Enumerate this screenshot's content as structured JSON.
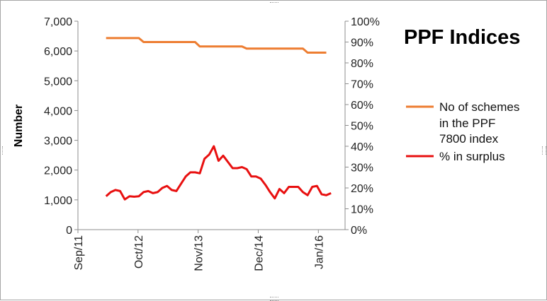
{
  "chart_data": {
    "type": "line",
    "title": "PPF Indices",
    "ylabel": "Number",
    "y_left_ticks": [
      "0",
      "1,000",
      "2,000",
      "3,000",
      "4,000",
      "5,000",
      "6,000",
      "7,000"
    ],
    "y_right_ticks": [
      "0%",
      "10%",
      "20%",
      "30%",
      "40%",
      "50%",
      "60%",
      "70%",
      "80%",
      "90%",
      "100%"
    ],
    "x_ticks": [
      "Sep/11",
      "Oct/12",
      "Nov/13",
      "Dec/14",
      "Jan/16"
    ],
    "ylim_left": [
      0,
      7000
    ],
    "ylim_right": [
      0,
      1
    ],
    "grid": false,
    "legend_position": "right",
    "series": [
      {
        "name_lines": [
          "No of schemes",
          "in the PPF",
          "7800 index"
        ],
        "axis": "left",
        "color": "#ED7D31",
        "points": [
          [
            "2012-03",
            6432
          ],
          [
            "2012-10",
            6432
          ],
          [
            "2012-11",
            6300
          ],
          [
            "2013-10",
            6300
          ],
          [
            "2013-11",
            6150
          ],
          [
            "2014-08",
            6150
          ],
          [
            "2014-09",
            6080
          ],
          [
            "2015-09",
            6080
          ],
          [
            "2015-10",
            5945
          ],
          [
            "2016-02",
            5945
          ]
        ]
      },
      {
        "name_lines": [
          "% in surplus"
        ],
        "axis": "right",
        "color": "#E81010",
        "points": [
          [
            "2012-03",
            0.16
          ],
          [
            "2012-04",
            0.18
          ],
          [
            "2012-05",
            0.19
          ],
          [
            "2012-06",
            0.185
          ],
          [
            "2012-07",
            0.145
          ],
          [
            "2012-08",
            0.16
          ],
          [
            "2012-09",
            0.158
          ],
          [
            "2012-10",
            0.16
          ],
          [
            "2012-11",
            0.18
          ],
          [
            "2012-12",
            0.185
          ],
          [
            "2013-01",
            0.175
          ],
          [
            "2013-02",
            0.18
          ],
          [
            "2013-03",
            0.2
          ],
          [
            "2013-04",
            0.21
          ],
          [
            "2013-05",
            0.19
          ],
          [
            "2013-06",
            0.185
          ],
          [
            "2013-07",
            0.22
          ],
          [
            "2013-08",
            0.255
          ],
          [
            "2013-09",
            0.275
          ],
          [
            "2013-10",
            0.275
          ],
          [
            "2013-11",
            0.27
          ],
          [
            "2013-12",
            0.34
          ],
          [
            "2014-01",
            0.36
          ],
          [
            "2014-02",
            0.4
          ],
          [
            "2014-03",
            0.33
          ],
          [
            "2014-04",
            0.355
          ],
          [
            "2014-05",
            0.325
          ],
          [
            "2014-06",
            0.295
          ],
          [
            "2014-07",
            0.295
          ],
          [
            "2014-08",
            0.3
          ],
          [
            "2014-09",
            0.29
          ],
          [
            "2014-10",
            0.255
          ],
          [
            "2014-11",
            0.255
          ],
          [
            "2014-12",
            0.245
          ],
          [
            "2015-01",
            0.215
          ],
          [
            "2015-02",
            0.18
          ],
          [
            "2015-03",
            0.15
          ],
          [
            "2015-04",
            0.195
          ],
          [
            "2015-05",
            0.175
          ],
          [
            "2015-06",
            0.205
          ],
          [
            "2015-07",
            0.205
          ],
          [
            "2015-08",
            0.205
          ],
          [
            "2015-09",
            0.18
          ],
          [
            "2015-10",
            0.165
          ],
          [
            "2015-11",
            0.205
          ],
          [
            "2015-12",
            0.21
          ],
          [
            "2016-01",
            0.17
          ],
          [
            "2016-02",
            0.165
          ],
          [
            "2016-03",
            0.175
          ]
        ]
      }
    ]
  }
}
